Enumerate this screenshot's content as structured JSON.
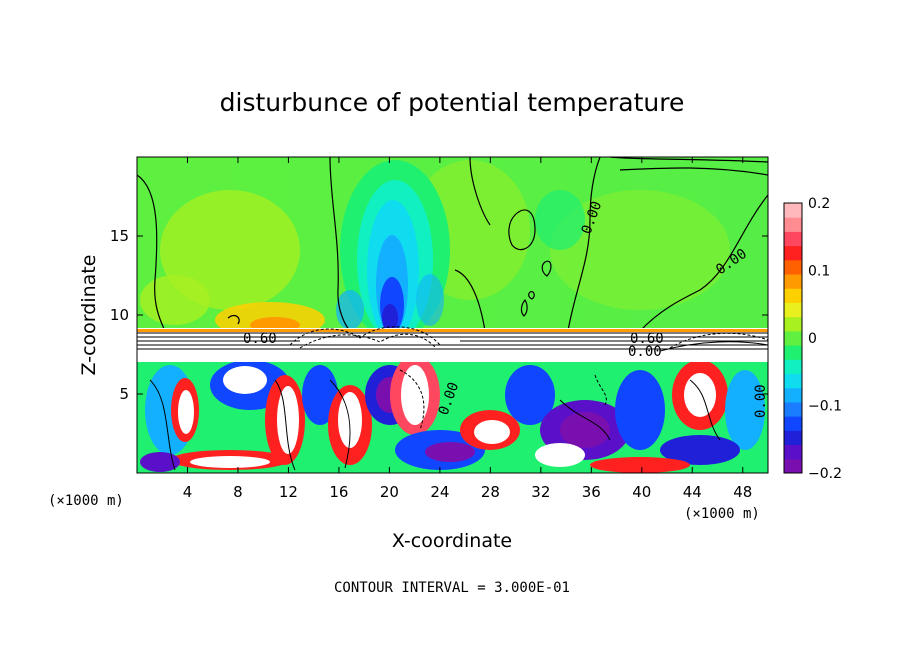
{
  "chart_data": {
    "type": "heatmap",
    "title": "disturbunce of potential temperature",
    "xlabel": "X-coordinate",
    "ylabel": "Z-coordinate",
    "x_unit_left": "(×1000 m)",
    "x_unit_right": "(×1000 m)",
    "xlim": [
      0,
      50
    ],
    "ylim": [
      0,
      20
    ],
    "x_ticks": [
      4,
      8,
      12,
      16,
      20,
      24,
      28,
      32,
      36,
      40,
      44,
      48
    ],
    "y_ticks": [
      5,
      10,
      15
    ],
    "colorbar": {
      "range": [
        -0.2,
        0.2
      ],
      "tick_labels": [
        "0.2",
        "0.1",
        "0",
        "−0.1",
        "−0.2"
      ],
      "tick_values": [
        0.2,
        0.1,
        0,
        -0.1,
        -0.2
      ],
      "colors": [
        "#7a0fb0",
        "#5a10c8",
        "#2020d8",
        "#1046ff",
        "#1a7cff",
        "#12b0ff",
        "#10dcf0",
        "#10f0c0",
        "#20f070",
        "#60f040",
        "#a8f020",
        "#e8f020",
        "#ffd000",
        "#ff9a00",
        "#ff6000",
        "#ff2020",
        "#ff4860",
        "#ff8c90",
        "#ffb8bc"
      ]
    },
    "contour_labels": [
      "0.60",
      "0.60",
      "0.00",
      "0.00",
      "0.00",
      "0.00",
      "0.00",
      "0.00"
    ],
    "footer": "CONTOUR INTERVAL = 3.000E-01"
  }
}
